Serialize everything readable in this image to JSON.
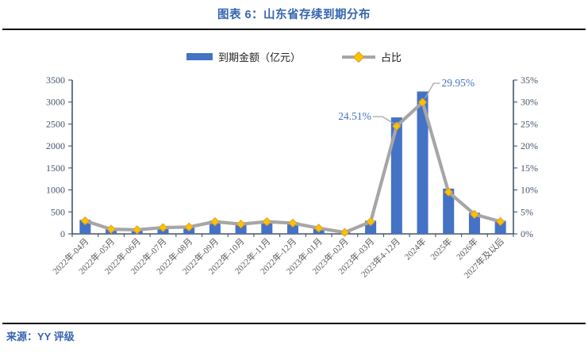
{
  "title": "图表 6：山东省存续到期分布",
  "source": "来源：YY 评级",
  "legend": {
    "bar_label": "到期金额（亿元）",
    "line_label": "占比"
  },
  "colors": {
    "bar": "#4472C4",
    "line": "#A6A6A6",
    "marker": "#FFC000",
    "marker_edge": "#D9A32B",
    "title_blue": "#3565AF",
    "annotation_blue": "#4472C4",
    "axis": "#44546A",
    "y_label": "#44546A",
    "x_label": "#595959",
    "rule_black": "#0a0a0a"
  },
  "chart_data": {
    "type": "bar",
    "combo": "bar+line",
    "title": "图表 6：山东省存续到期分布",
    "categories": [
      "2022年-04月",
      "2022年-05月",
      "2022年-06月",
      "2022年-07月",
      "2022年-08月",
      "2022年-09月",
      "2022年-10月",
      "2022年-11月",
      "2022年-12月",
      "2023年-01月",
      "2023年-02月",
      "2023年-03月",
      "2023年4-12月",
      "2024年",
      "2025年",
      "2026年",
      "2027年及以后"
    ],
    "series": [
      {
        "name": "到期金额（亿元）",
        "type": "bar",
        "axis": "left",
        "values": [
          320,
          115,
          100,
          155,
          170,
          300,
          240,
          300,
          265,
          140,
          35,
          300,
          2650,
          3240,
          1030,
          480,
          300
        ]
      },
      {
        "name": "占比",
        "type": "line",
        "axis": "right",
        "unit": "%",
        "values": [
          2.96,
          1.06,
          0.92,
          1.43,
          1.57,
          2.77,
          2.22,
          2.77,
          2.45,
          1.29,
          0.32,
          2.77,
          24.51,
          29.95,
          9.52,
          4.44,
          2.8
        ]
      }
    ],
    "left_axis": {
      "min": 0,
      "max": 3500,
      "step": 500,
      "ticks": [
        "0",
        "500",
        "1000",
        "1500",
        "2000",
        "2500",
        "3000",
        "3500"
      ]
    },
    "right_axis": {
      "min": 0,
      "max": 35,
      "step": 5,
      "ticks": [
        "0%",
        "5%",
        "10%",
        "15%",
        "20%",
        "25%",
        "30%",
        "35%"
      ]
    },
    "annotations": [
      {
        "index": 12,
        "category": "2023年4-12月",
        "label": "24.51%",
        "value": 24.51,
        "side": "left"
      },
      {
        "index": 13,
        "category": "2024年",
        "label": "29.95%",
        "value": 29.95,
        "side": "right"
      }
    ],
    "grid": false,
    "legend_position": "top"
  }
}
